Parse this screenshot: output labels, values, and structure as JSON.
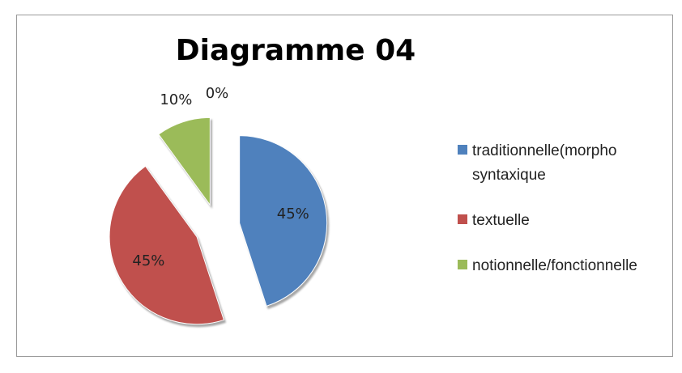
{
  "chart_data": {
    "type": "pie",
    "title": "Diagramme 04",
    "categories": [
      "traditionnelle(morpho syntaxique",
      "textuelle",
      "notionnelle/fonctionnelle",
      null
    ],
    "values": [
      45,
      45,
      10,
      0
    ],
    "value_labels": [
      "45%",
      "45%",
      "10%",
      "0%"
    ],
    "colors": [
      "#4f81bd",
      "#c0504d",
      "#9bbb59",
      "#8064a2"
    ],
    "exploded": true,
    "legend": "right"
  }
}
